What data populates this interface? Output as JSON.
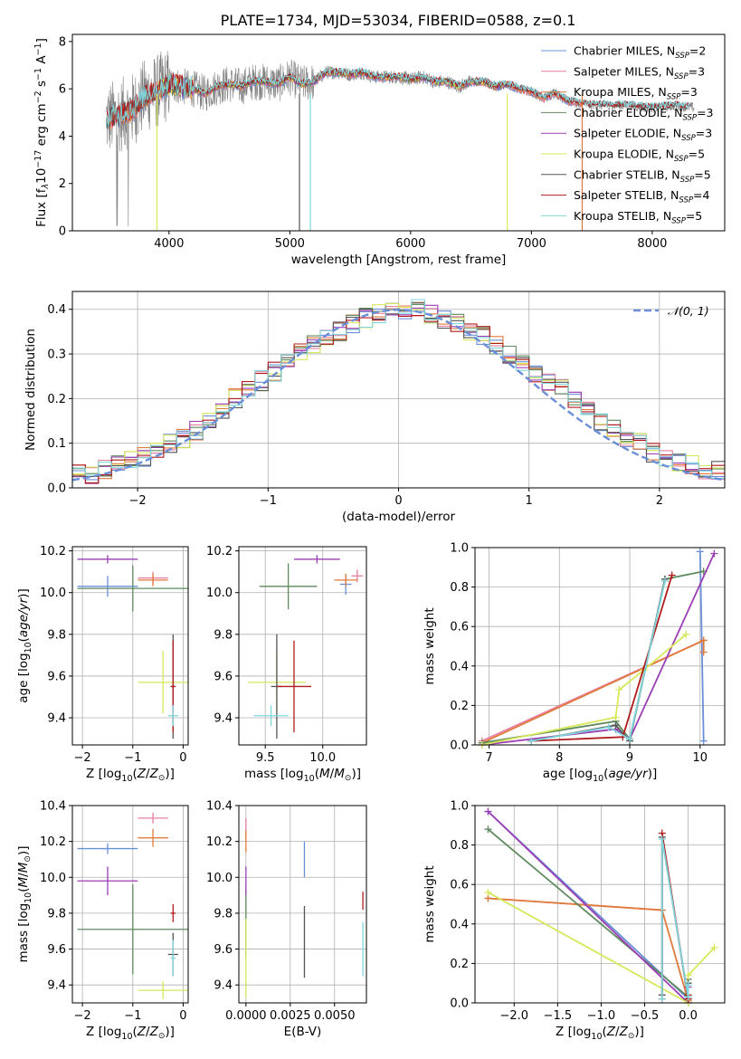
{
  "title": "PLATE=1734, MJD=53034, FIBERID=0588, z=0.1",
  "colors": {
    "chabrier_miles": "#6a8fd8",
    "salpeter_miles": "#e87f9f",
    "kroupa_miles": "#e07b3c",
    "chabrier_elodie": "#5f8a5f",
    "salpeter_elodie": "#9b3fb5",
    "kroupa_elodie": "#d7e85a",
    "chabrier_stelib": "#555555",
    "salpeter_stelib": "#b01c1c",
    "kroupa_stelib": "#7fd6dc",
    "data": "#808080",
    "normal": "#6a8fd8"
  },
  "chart_data": [
    {
      "type": "line",
      "name": "spectrum",
      "xlabel": "wavelength [Angstrom, rest frame]",
      "ylabel": "Flux [f",
      "xlim": [
        3200,
        8600
      ],
      "ylim": [
        0,
        8.3
      ],
      "xticks": [
        "4000",
        "5000",
        "6000",
        "7000",
        "8000"
      ],
      "yticks": [
        "0",
        "2",
        "4",
        "6",
        "8"
      ],
      "legend_position": "top-right",
      "legend": [
        {
          "label": "Chabrier MILES, N",
          "sub": "SSP",
          "eq": "=2",
          "color_key": "chabrier_miles"
        },
        {
          "label": "Salpeter MILES, N",
          "sub": "SSP",
          "eq": "=3",
          "color_key": "salpeter_miles"
        },
        {
          "label": "Kroupa MILES, N",
          "sub": "SSP",
          "eq": "=3",
          "color_key": "kroupa_miles"
        },
        {
          "label": "Chabrier ELODIE, N",
          "sub": "SSP",
          "eq": "=3",
          "color_key": "chabrier_elodie"
        },
        {
          "label": "Salpeter ELODIE, N",
          "sub": "SSP",
          "eq": "=3",
          "color_key": "salpeter_elodie"
        },
        {
          "label": "Kroupa ELODIE, N",
          "sub": "SSP",
          "eq": "=5",
          "color_key": "kroupa_elodie"
        },
        {
          "label": "Chabrier STELIB, N",
          "sub": "SSP",
          "eq": "=5",
          "color_key": "chabrier_stelib"
        },
        {
          "label": "Salpeter STELIB, N",
          "sub": "SSP",
          "eq": "=4",
          "color_key": "salpeter_stelib"
        },
        {
          "label": "Kroupa STELIB, N",
          "sub": "SSP",
          "eq": "=5",
          "color_key": "kroupa_stelib"
        }
      ],
      "continuum": {
        "x": [
          3480,
          3600,
          3700,
          3800,
          3900,
          4000,
          4100,
          4200,
          4300,
          4400,
          4500,
          4600,
          4700,
          4800,
          4900,
          5000,
          5100,
          5200,
          5300,
          5400,
          5500,
          5600,
          5700,
          5800,
          5900,
          6000,
          6100,
          6200,
          6300,
          6400,
          6500,
          6600,
          6700,
          6800,
          6900,
          7000,
          7100,
          7200,
          7300,
          7400,
          7500
        ],
        "y": [
          4.7,
          4.9,
          5.1,
          5.7,
          5.9,
          6.2,
          6.1,
          6.0,
          5.8,
          6.1,
          6.2,
          6.1,
          6.3,
          6.3,
          6.2,
          6.5,
          6.2,
          6.3,
          6.7,
          6.7,
          6.6,
          6.7,
          6.5,
          6.5,
          6.5,
          6.4,
          6.5,
          6.3,
          6.3,
          6.1,
          6.3,
          6.3,
          6.1,
          6.2,
          6.0,
          5.9,
          5.6,
          5.8,
          5.5,
          5.4,
          5.3
        ]
      },
      "data_tail": {
        "x": [
          7400,
          7600,
          7800,
          8000,
          8200,
          8350
        ],
        "y": [
          5.4,
          5.3,
          5.3,
          5.2,
          5.3,
          5.2
        ]
      }
    },
    {
      "type": "histogram",
      "name": "residuals",
      "xlabel": "(data-model)/error",
      "ylabel": "Normed distribution",
      "xlim": [
        -2.5,
        2.5
      ],
      "ylim": [
        0,
        0.44
      ],
      "xticks": [
        "−2",
        "−1",
        "0",
        "1",
        "2"
      ],
      "yticks": [
        "0.0",
        "0.1",
        "0.2",
        "0.3",
        "0.4"
      ],
      "legend_position": "top-right",
      "legend": [
        {
          "label": "𝒩(0, 1)",
          "color_key": "normal"
        }
      ],
      "bin_width": 0.1,
      "base": [
        0.03,
        0.03,
        0.04,
        0.05,
        0.06,
        0.07,
        0.08,
        0.1,
        0.11,
        0.13,
        0.15,
        0.17,
        0.2,
        0.22,
        0.24,
        0.26,
        0.28,
        0.3,
        0.32,
        0.34,
        0.35,
        0.37,
        0.38,
        0.39,
        0.4,
        0.4,
        0.4,
        0.39,
        0.38,
        0.37,
        0.35,
        0.34,
        0.32,
        0.3,
        0.28,
        0.26,
        0.24,
        0.22,
        0.2,
        0.17,
        0.15,
        0.13,
        0.11,
        0.1,
        0.08,
        0.07,
        0.06,
        0.05,
        0.04,
        0.04
      ]
    },
    {
      "type": "errorbar",
      "name": "age-vs-Z",
      "xlabel": "Z [log",
      "ylabel": "age  [log",
      "xlim": [
        -2.2,
        0.1
      ],
      "ylim": [
        9.27,
        10.22
      ],
      "xticks": [
        "−2",
        "−1",
        "0"
      ],
      "yticks": [
        "9.4",
        "9.6",
        "9.8",
        "10.0",
        "10.2"
      ],
      "points": [
        {
          "x": -1.5,
          "xerr": 0.6,
          "y": 10.03,
          "yerr": 0.05,
          "color_key": "chabrier_miles"
        },
        {
          "x": -0.6,
          "xerr": 0.3,
          "y": 10.07,
          "yerr": 0.03,
          "color_key": "salpeter_miles"
        },
        {
          "x": -0.6,
          "xerr": 0.3,
          "y": 10.06,
          "yerr": 0.03,
          "color_key": "kroupa_miles"
        },
        {
          "x": -1.0,
          "xerr": 1.1,
          "y": 10.02,
          "yerr": 0.11,
          "color_key": "chabrier_elodie"
        },
        {
          "x": -1.5,
          "xerr": 0.6,
          "y": 10.16,
          "yerr": 0.02,
          "color_key": "salpeter_elodie"
        },
        {
          "x": -0.4,
          "xerr": 0.5,
          "y": 9.57,
          "yerr": 0.15,
          "color_key": "kroupa_elodie"
        },
        {
          "x": -0.2,
          "xerr": 0.05,
          "y": 9.55,
          "yerr": 0.25,
          "color_key": "chabrier_stelib"
        },
        {
          "x": -0.2,
          "xerr": 0.05,
          "y": 9.55,
          "yerr": 0.22,
          "color_key": "salpeter_stelib"
        },
        {
          "x": -0.2,
          "xerr": 0.1,
          "y": 9.41,
          "yerr": 0.05,
          "color_key": "kroupa_stelib"
        }
      ]
    },
    {
      "type": "errorbar",
      "name": "age-vs-mass",
      "xlabel": "mass [log",
      "ylabel": "",
      "xlim": [
        9.27,
        10.38
      ],
      "ylim": [
        9.27,
        10.22
      ],
      "xticks": [
        "9.5",
        "10.0"
      ],
      "yticks": [
        "9.4",
        "9.6",
        "9.8",
        "10.0",
        "10.2"
      ],
      "points": [
        {
          "x": 10.2,
          "xerr": 0.05,
          "y": 10.04,
          "yerr": 0.05,
          "color_key": "chabrier_miles"
        },
        {
          "x": 10.3,
          "xerr": 0.05,
          "y": 10.08,
          "yerr": 0.03,
          "color_key": "salpeter_miles"
        },
        {
          "x": 10.2,
          "xerr": 0.1,
          "y": 10.06,
          "yerr": 0.03,
          "color_key": "kroupa_miles"
        },
        {
          "x": 9.7,
          "xerr": 0.25,
          "y": 10.03,
          "yerr": 0.11,
          "color_key": "chabrier_elodie"
        },
        {
          "x": 9.95,
          "xerr": 0.2,
          "y": 10.16,
          "yerr": 0.02,
          "color_key": "salpeter_elodie"
        },
        {
          "x": 9.6,
          "xerr": 0.25,
          "y": 9.57,
          "yerr": 0.15,
          "color_key": "kroupa_elodie"
        },
        {
          "x": 9.6,
          "xerr": 0.05,
          "y": 9.55,
          "yerr": 0.25,
          "color_key": "chabrier_stelib"
        },
        {
          "x": 9.75,
          "xerr": 0.15,
          "y": 9.55,
          "yerr": 0.22,
          "color_key": "salpeter_stelib"
        },
        {
          "x": 9.55,
          "xerr": 0.15,
          "y": 9.41,
          "yerr": 0.05,
          "color_key": "kroupa_stelib"
        }
      ]
    },
    {
      "type": "line",
      "name": "mass-weight-vs-age",
      "xlabel": "age  [log",
      "ylabel": "mass weight",
      "xlim": [
        6.8,
        10.35
      ],
      "ylim": [
        0,
        1.0
      ],
      "xticks": [
        "7",
        "8",
        "9",
        "10"
      ],
      "yticks": [
        "0.0",
        "0.2",
        "0.4",
        "0.6",
        "0.8",
        "1.0"
      ],
      "series": [
        {
          "color_key": "chabrier_miles",
          "x": [
            10.05,
            10.0
          ],
          "y": [
            0.02,
            0.98
          ]
        },
        {
          "color_key": "salpeter_miles",
          "x": [
            6.9,
            10.05
          ],
          "y": [
            0.02,
            0.53
          ]
        },
        {
          "color_key": "kroupa_miles",
          "x": [
            6.9,
            10.05,
            10.05
          ],
          "y": [
            0.01,
            0.53,
            0.47
          ]
        },
        {
          "color_key": "chabrier_elodie",
          "x": [
            6.9,
            8.8,
            9.0,
            9.5,
            10.05
          ],
          "y": [
            0.01,
            0.12,
            0.03,
            0.84,
            0.88
          ]
        },
        {
          "color_key": "salpeter_elodie",
          "x": [
            6.9,
            8.8,
            9.0,
            10.2
          ],
          "y": [
            0.0,
            0.08,
            0.03,
            0.97
          ]
        },
        {
          "color_key": "kroupa_elodie",
          "x": [
            6.9,
            8.8,
            8.85,
            9.2,
            9.8
          ],
          "y": [
            0.0,
            0.14,
            0.28,
            0.38,
            0.56
          ]
        },
        {
          "color_key": "chabrier_stelib",
          "x": [
            7.6,
            8.8,
            9.0,
            9.5
          ],
          "y": [
            0.02,
            0.1,
            0.02,
            0.84
          ]
        },
        {
          "color_key": "salpeter_stelib",
          "x": [
            7.6,
            8.9,
            9.6
          ],
          "y": [
            0.02,
            0.04,
            0.86
          ]
        },
        {
          "color_key": "kroupa_stelib",
          "x": [
            7.6,
            8.7,
            9.0,
            9.5
          ],
          "y": [
            0.02,
            0.09,
            0.03,
            0.83
          ]
        }
      ]
    },
    {
      "type": "errorbar",
      "name": "mass-vs-Z",
      "xlabel": "Z [log",
      "ylabel": "mass [log",
      "xlim": [
        -2.2,
        0.1
      ],
      "ylim": [
        9.3,
        10.4
      ],
      "xticks": [
        "−2",
        "−1",
        "0"
      ],
      "yticks": [
        "9.4",
        "9.6",
        "9.8",
        "10.0",
        "10.2",
        "10.4"
      ],
      "points": [
        {
          "x": -1.5,
          "xerr": 0.6,
          "y": 10.16,
          "yerr": 0.03,
          "color_key": "chabrier_miles"
        },
        {
          "x": -0.6,
          "xerr": 0.3,
          "y": 10.33,
          "yerr": 0.03,
          "color_key": "salpeter_miles"
        },
        {
          "x": -0.6,
          "xerr": 0.3,
          "y": 10.22,
          "yerr": 0.05,
          "color_key": "kroupa_miles"
        },
        {
          "x": -1.0,
          "xerr": 1.1,
          "y": 9.71,
          "yerr": 0.25,
          "color_key": "chabrier_elodie"
        },
        {
          "x": -1.5,
          "xerr": 0.6,
          "y": 9.98,
          "yerr": 0.08,
          "color_key": "salpeter_elodie"
        },
        {
          "x": -0.4,
          "xerr": 0.5,
          "y": 9.37,
          "yerr": 0.05,
          "color_key": "kroupa_elodie"
        },
        {
          "x": -0.2,
          "xerr": 0.1,
          "y": 9.57,
          "yerr": 0.12,
          "color_key": "chabrier_stelib"
        },
        {
          "x": -0.2,
          "xerr": 0.05,
          "y": 9.8,
          "yerr": 0.05,
          "color_key": "salpeter_stelib"
        },
        {
          "x": -0.2,
          "xerr": 0.05,
          "y": 9.55,
          "yerr": 0.1,
          "color_key": "kroupa_stelib"
        }
      ]
    },
    {
      "type": "errorbar",
      "name": "mass-vs-ebv",
      "xlabel": "E(B-V)",
      "ylabel": "",
      "xlim": [
        -0.0004,
        0.0068
      ],
      "ylim": [
        9.3,
        10.4
      ],
      "xticks": [
        "0.0000",
        "0.0025",
        "0.0050"
      ],
      "yticks": [
        "9.4",
        "9.6",
        "9.8",
        "10.0",
        "10.2",
        "10.4"
      ],
      "points": [
        {
          "x": 0.0033,
          "xerr": 0,
          "y": 10.1,
          "yerr": 0.1,
          "color_key": "chabrier_miles"
        },
        {
          "x": 0.0,
          "xerr": 0,
          "y": 10.28,
          "yerr": 0.05,
          "color_key": "salpeter_miles"
        },
        {
          "x": 0.0,
          "xerr": 0,
          "y": 10.2,
          "yerr": 0.06,
          "color_key": "kroupa_miles"
        },
        {
          "x": 0.0,
          "xerr": 0,
          "y": 9.75,
          "yerr": 0.2,
          "color_key": "chabrier_elodie"
        },
        {
          "x": 0.0,
          "xerr": 0,
          "y": 9.98,
          "yerr": 0.08,
          "color_key": "salpeter_elodie"
        },
        {
          "x": 0.0,
          "xerr": 0,
          "y": 9.55,
          "yerr": 0.22,
          "color_key": "kroupa_elodie"
        },
        {
          "x": 0.0033,
          "xerr": 0,
          "y": 9.64,
          "yerr": 0.2,
          "color_key": "chabrier_stelib"
        },
        {
          "x": 0.0066,
          "xerr": 0,
          "y": 9.87,
          "yerr": 0.05,
          "color_key": "salpeter_stelib"
        },
        {
          "x": 0.0066,
          "xerr": 0,
          "y": 9.6,
          "yerr": 0.15,
          "color_key": "kroupa_stelib"
        }
      ]
    },
    {
      "type": "line",
      "name": "mass-weight-vs-Z",
      "xlabel": "Z [log",
      "ylabel": "mass weight",
      "xlim": [
        -2.45,
        0.42
      ],
      "ylim": [
        0,
        1.0
      ],
      "xticks": [
        "−2.0",
        "−1.5",
        "−1.0",
        "−0.5",
        "0.0"
      ],
      "yticks": [
        "0.0",
        "0.2",
        "0.4",
        "0.6",
        "0.8",
        "1.0"
      ],
      "series": [
        {
          "color_key": "chabrier_miles",
          "x": [
            -2.3,
            0.0
          ],
          "y": [
            0.97,
            0.02
          ]
        },
        {
          "color_key": "salpeter_miles",
          "x": [
            -2.3,
            -0.3
          ],
          "y": [
            0.53,
            0.47
          ]
        },
        {
          "color_key": "kroupa_miles",
          "x": [
            -2.3,
            -0.3,
            0.0
          ],
          "y": [
            0.53,
            0.47,
            0.01
          ]
        },
        {
          "color_key": "chabrier_elodie",
          "x": [
            -2.3,
            0.0,
            0.0
          ],
          "y": [
            0.88,
            0.03,
            0.12
          ]
        },
        {
          "color_key": "salpeter_elodie",
          "x": [
            -2.3,
            0.0,
            0.0
          ],
          "y": [
            0.97,
            0.0,
            0.08
          ]
        },
        {
          "color_key": "kroupa_elodie",
          "x": [
            -2.3,
            0.0,
            0.0,
            0.3
          ],
          "y": [
            0.56,
            0.0,
            0.14,
            0.28
          ]
        },
        {
          "color_key": "chabrier_stelib",
          "x": [
            -0.3,
            -0.3,
            0.0,
            0.0
          ],
          "y": [
            0.04,
            0.84,
            0.02,
            0.1
          ]
        },
        {
          "color_key": "salpeter_stelib",
          "x": [
            -0.3,
            -0.3,
            0.0,
            0.0
          ],
          "y": [
            0.02,
            0.86,
            0.02,
            0.04
          ]
        },
        {
          "color_key": "kroupa_stelib",
          "x": [
            -0.3,
            -0.3,
            0.0,
            0.0
          ],
          "y": [
            0.02,
            0.83,
            0.03,
            0.09
          ]
        }
      ]
    }
  ]
}
